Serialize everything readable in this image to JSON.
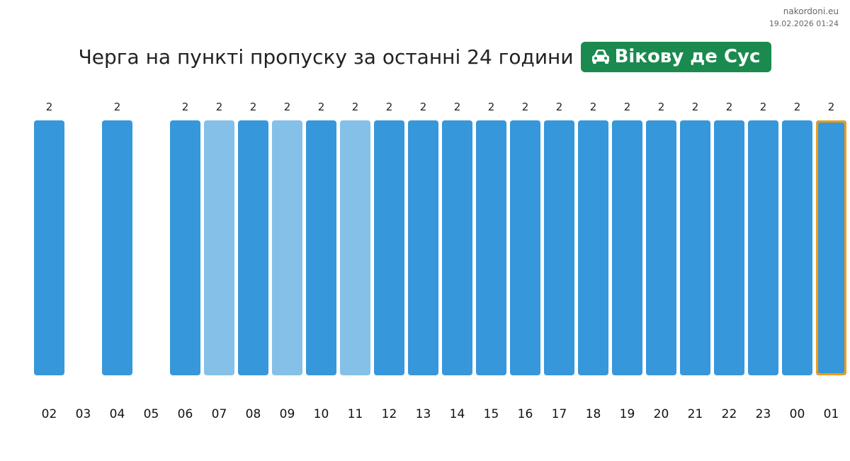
{
  "site": "nakordoni.eu",
  "timestamp": "19.02.2026 01:24",
  "title": "Черга на пункті пропуску за останні 24 години",
  "badge": {
    "label": "Вікову де Сус",
    "icon": "car-icon",
    "color": "#1b8a4f"
  },
  "colors": {
    "bar": "#3797db",
    "bar_light": "#85c0e8",
    "highlight_border": "#f39c12"
  },
  "chart_data": {
    "type": "bar",
    "title": "Черга на пункті пропуску за останні 24 години",
    "categories": [
      "02",
      "03",
      "04",
      "05",
      "06",
      "07",
      "08",
      "09",
      "10",
      "11",
      "12",
      "13",
      "14",
      "15",
      "16",
      "17",
      "18",
      "19",
      "20",
      "21",
      "22",
      "23",
      "00",
      "01"
    ],
    "values": [
      2,
      null,
      2,
      null,
      2,
      2,
      2,
      2,
      2,
      2,
      2,
      2,
      2,
      2,
      2,
      2,
      2,
      2,
      2,
      2,
      2,
      2,
      2,
      2
    ],
    "bar_shade": [
      "dark",
      "none",
      "dark",
      "none",
      "dark",
      "light",
      "dark",
      "light",
      "dark",
      "light",
      "dark",
      "dark",
      "dark",
      "dark",
      "dark",
      "dark",
      "dark",
      "dark",
      "dark",
      "dark",
      "dark",
      "dark",
      "dark",
      "dark"
    ],
    "highlighted": "01",
    "ylim": [
      0,
      2
    ],
    "grid": false,
    "legend": "none"
  }
}
